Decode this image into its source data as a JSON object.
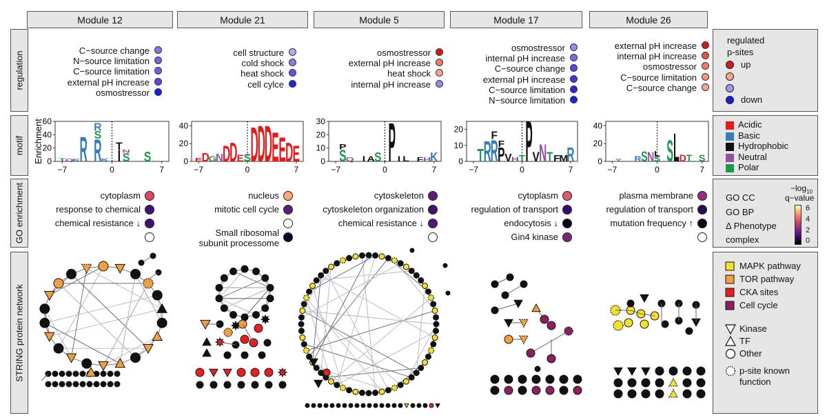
{
  "modules": [
    {
      "title": "Module 12"
    },
    {
      "title": "Module 21"
    },
    {
      "title": "Module 5"
    },
    {
      "title": "Module 17"
    },
    {
      "title": "Module 26"
    }
  ],
  "row_labels": {
    "regulation": "regulation",
    "motif": "motif",
    "go": "GO enrichment",
    "string": "STRING protein network"
  },
  "regulation": [
    [
      {
        "label": "C−source change",
        "color": "#8b72e8"
      },
      {
        "label": "N−source limitation",
        "color": "#7d62e6"
      },
      {
        "label": "C−source limitation",
        "color": "#7560e4"
      },
      {
        "label": "external pH increase",
        "color": "#5a46e0"
      },
      {
        "label": "osmostressor",
        "color": "#1c1ce0"
      }
    ],
    [
      {
        "label": "cell structure",
        "color": "#b8a9f2"
      },
      {
        "label": "cold shock",
        "color": "#8f78ea"
      },
      {
        "label": "heat shock",
        "color": "#6a50e6"
      },
      {
        "label": "cell cylce",
        "color": "#2222e2"
      }
    ],
    [
      {
        "label": "osmostressor",
        "color": "#d81818"
      },
      {
        "label": "external pH increase",
        "color": "#ef7b62"
      },
      {
        "label": "heat shock",
        "color": "#f4a58e"
      },
      {
        "label": "internal pH increase",
        "color": "#9a86ec"
      }
    ],
    [
      {
        "label": "osmostressor",
        "color": "#9a86ec"
      },
      {
        "label": "internal pH increase",
        "color": "#8068e8"
      },
      {
        "label": "C−source change",
        "color": "#5a46e2"
      },
      {
        "label": "external pH increase",
        "color": "#4434e2"
      },
      {
        "label": "C−source limitation",
        "color": "#2e24e0"
      },
      {
        "label": "N−source limitation",
        "color": "#2020de"
      }
    ],
    [
      {
        "label": "external pH increase",
        "color": "#d81818"
      },
      {
        "label": "internal pH increase",
        "color": "#e8553c"
      },
      {
        "label": "osmostressor",
        "color": "#ef7b62"
      },
      {
        "label": "C−source limitation",
        "color": "#f3977e"
      },
      {
        "label": "C−source change",
        "color": "#f4a58e"
      }
    ]
  ],
  "motif": {
    "ylabel": "Enrichment",
    "panels": [
      {
        "yticks": [
          "0",
          "20",
          "40",
          "60"
        ],
        "xticks": [
          "−7",
          "0",
          "7"
        ],
        "letters": [
          {
            "c": "T",
            "p": -7,
            "h": 5,
            "k": "p"
          },
          {
            "c": "Q",
            "p": -6,
            "h": 4,
            "k": "n"
          },
          {
            "c": "K",
            "p": -5,
            "h": 4,
            "k": "b"
          },
          {
            "c": "R",
            "p": -4,
            "h": 38,
            "k": "b"
          },
          {
            "c": "R",
            "p": -2,
            "h": 34,
            "k": "b"
          },
          {
            "c": "S",
            "p": -2,
            "h": 12,
            "k": "p"
          },
          {
            "c": "R",
            "p": -2,
            "h": 12,
            "k": "b"
          },
          {
            "c": "K",
            "p": -1,
            "h": 5,
            "k": "b"
          },
          {
            "c": "I",
            "p": 1,
            "h": 17,
            "k": "h"
          },
          {
            "c": "T",
            "p": 1,
            "h": 12,
            "k": "h"
          },
          {
            "c": "S",
            "p": 2,
            "h": 13,
            "k": "p"
          },
          {
            "c": "N",
            "p": 2,
            "h": 5,
            "k": "n"
          },
          {
            "c": "S",
            "p": 5,
            "h": 15,
            "k": "p"
          }
        ]
      },
      {
        "yticks": [
          "0",
          "20",
          "40"
        ],
        "xticks": [
          "−7",
          "0",
          "7"
        ],
        "letters": [
          {
            "c": "E",
            "p": -7,
            "h": 4,
            "k": "a"
          },
          {
            "c": "D",
            "p": -6,
            "h": 10,
            "k": "a"
          },
          {
            "c": "G",
            "p": -5,
            "h": 6,
            "k": "p"
          },
          {
            "c": "N",
            "p": -4,
            "h": 9,
            "k": "n"
          },
          {
            "c": "D",
            "p": -3,
            "h": 18,
            "k": "a"
          },
          {
            "c": "D",
            "p": -2,
            "h": 22,
            "k": "a"
          },
          {
            "c": "E",
            "p": -1,
            "h": 8,
            "k": "a"
          },
          {
            "c": "S",
            "p": 0,
            "h": 9,
            "k": "p"
          },
          {
            "c": "D",
            "p": 1,
            "h": 40,
            "k": "a"
          },
          {
            "c": "D",
            "p": 2,
            "h": 42,
            "k": "a"
          },
          {
            "c": "D",
            "p": 3,
            "h": 42,
            "k": "a"
          },
          {
            "c": "E",
            "p": 4,
            "h": 34,
            "k": "a"
          },
          {
            "c": "E",
            "p": 5,
            "h": 28,
            "k": "a"
          },
          {
            "c": "D",
            "p": 6,
            "h": 22,
            "k": "a"
          },
          {
            "c": "E",
            "p": 7,
            "h": 18,
            "k": "a"
          }
        ]
      },
      {
        "yticks": [
          "0",
          "10",
          "20",
          "30"
        ],
        "xticks": [
          "−7",
          "0",
          "7"
        ],
        "letters": [
          {
            "c": "S",
            "p": -6,
            "h": 9,
            "k": "p"
          },
          {
            "c": "P",
            "p": -6,
            "h": 4,
            "k": "h"
          },
          {
            "c": "Q",
            "p": -5,
            "h": 3,
            "k": "n"
          },
          {
            "c": "I",
            "p": -3,
            "h": 4,
            "k": "h"
          },
          {
            "c": "A",
            "p": -2,
            "h": 4,
            "k": "h"
          },
          {
            "c": "S",
            "p": -1,
            "h": 7,
            "k": "p"
          },
          {
            "c": "P",
            "p": 1,
            "h": 30,
            "k": "h"
          },
          {
            "c": "I",
            "p": 2,
            "h": 4,
            "k": "h"
          },
          {
            "c": "L",
            "p": 3,
            "h": 4,
            "k": "h"
          },
          {
            "c": "F",
            "p": 5,
            "h": 3,
            "k": "h"
          },
          {
            "c": "H",
            "p": 6,
            "h": 3,
            "k": "n"
          },
          {
            "c": "K",
            "p": 7,
            "h": 7,
            "k": "b"
          }
        ]
      },
      {
        "yticks": [
          "0",
          "10",
          "20"
        ],
        "xticks": [
          "−7",
          "0",
          "7"
        ],
        "letters": [
          {
            "c": "T",
            "p": -6,
            "h": 8,
            "k": "p"
          },
          {
            "c": "R",
            "p": -5,
            "h": 13,
            "k": "b"
          },
          {
            "c": "R",
            "p": -4,
            "h": 14,
            "k": "b"
          },
          {
            "c": "F",
            "p": -4,
            "h": 5,
            "k": "h"
          },
          {
            "c": "P",
            "p": -3,
            "h": 9,
            "k": "h"
          },
          {
            "c": "F",
            "p": -3,
            "h": 4,
            "k": "h"
          },
          {
            "c": "V",
            "p": -2,
            "h": 5,
            "k": "h"
          },
          {
            "c": "H",
            "p": -1,
            "h": 3,
            "k": "n"
          },
          {
            "c": "T",
            "p": 0,
            "h": 4,
            "k": "p"
          },
          {
            "c": "P",
            "p": 1,
            "h": 26,
            "k": "h"
          },
          {
            "c": "V",
            "p": 2,
            "h": 6,
            "k": "h"
          },
          {
            "c": "N",
            "p": 3,
            "h": 11,
            "k": "n"
          },
          {
            "c": "T",
            "p": 4,
            "h": 6,
            "k": "p"
          },
          {
            "c": "F",
            "p": 5,
            "h": 4,
            "k": "h"
          },
          {
            "c": "M",
            "p": 6,
            "h": 4,
            "k": "h"
          },
          {
            "c": "R",
            "p": 7,
            "h": 9,
            "k": "b"
          }
        ]
      },
      {
        "yticks": [
          "0",
          "20",
          "40"
        ],
        "xticks": [
          "−7",
          "0",
          "7"
        ],
        "letters": [
          {
            "c": "Y",
            "p": -6,
            "h": 3,
            "k": "n"
          },
          {
            "c": "R",
            "p": -3,
            "h": 6,
            "k": "b"
          },
          {
            "c": "S",
            "p": -2,
            "h": 12,
            "k": "p"
          },
          {
            "c": "N",
            "p": -1,
            "h": 11,
            "k": "n"
          },
          {
            "c": "S",
            "p": 0,
            "h": 6,
            "k": "p"
          },
          {
            "c": "L",
            "p": 0,
            "h": 6,
            "k": "h"
          },
          {
            "c": "S",
            "p": 2,
            "h": 25,
            "k": "p"
          },
          {
            "c": "L",
            "p": 3,
            "h": 33,
            "k": "h"
          },
          {
            "c": "D",
            "p": 4,
            "h": 8,
            "k": "a"
          },
          {
            "c": "T",
            "p": 5,
            "h": 8,
            "k": "p"
          },
          {
            "c": "S",
            "p": 7,
            "h": 8,
            "k": "p"
          }
        ]
      }
    ],
    "colors": {
      "a": "#e41a1c",
      "b": "#377eb8",
      "h": "#111111",
      "n": "#984ea3",
      "p": "#1a9a4a"
    }
  },
  "go": [
    [
      {
        "label": "cytoplasm",
        "v": 2.8
      },
      {
        "label": "response to chemical",
        "v": 5.4
      },
      {
        "label": "chemical resistance ↓",
        "v": 5.4
      },
      {
        "label": "",
        "v": null
      }
    ],
    [
      {
        "label": "nucleus",
        "v": 1.5
      },
      {
        "label": "mitotic cell cycle",
        "v": 4.8
      },
      {
        "label": "",
        "v": null
      },
      {
        "label": "Small ribosomal\nsubunit processome",
        "v": 6.6
      }
    ],
    [
      {
        "label": "cytoskeleton",
        "v": 4.8
      },
      {
        "label": "cytoskeleton organization",
        "v": 5.4
      },
      {
        "label": "chemical resistance ↓",
        "v": 5.0
      },
      {
        "label": "",
        "v": null
      }
    ],
    [
      {
        "label": "cytoplasm",
        "v": 2.6
      },
      {
        "label": "regulation of transport",
        "v": 5.6
      },
      {
        "label": "endocytosis ↓",
        "v": 6.8
      },
      {
        "label": "Gin4 kinase",
        "v": 4.3
      }
    ],
    [
      {
        "label": "plasma membrane",
        "v": 3.8
      },
      {
        "label": "regulation of transport",
        "v": 5.9
      },
      {
        "label": "mutation frequency ↑",
        "v": 6.8
      },
      {
        "label": "",
        "v": null
      }
    ]
  ],
  "legends": {
    "regulation": {
      "title1": "regulated",
      "title2": "p-sites",
      "up": "up",
      "down": "down",
      "colors": [
        "#d81818",
        "#f4a58e",
        "#a995ec",
        "#1a1ae0"
      ]
    },
    "motif": [
      {
        "label": "Acidic",
        "color": "#e41a1c"
      },
      {
        "label": "Basic",
        "color": "#377eb8"
      },
      {
        "label": "Hydrophobic",
        "color": "#111111"
      },
      {
        "label": "Neutral",
        "color": "#984ea3"
      },
      {
        "label": "Polar",
        "color": "#1a9a4a"
      }
    ],
    "go": {
      "items": [
        "GO CC",
        "GO BP",
        "Δ Phenotype",
        "complex"
      ],
      "scale_title1": "−log",
      "scale_sub": "10",
      "scale_title2": "q−value",
      "ticks": [
        "6",
        "4",
        "2",
        "0"
      ]
    },
    "string": {
      "categories": [
        {
          "label": "MAPK pathway",
          "color": "#f5e02c"
        },
        {
          "label": "TOR pathway",
          "color": "#f0a040"
        },
        {
          "label": "CKA sites",
          "color": "#e62020"
        },
        {
          "label": "Cell cycle",
          "color": "#8a2060"
        }
      ],
      "shapes": [
        "Kinase",
        "TF",
        "Other"
      ],
      "known": "p-site known\nfunction"
    }
  }
}
